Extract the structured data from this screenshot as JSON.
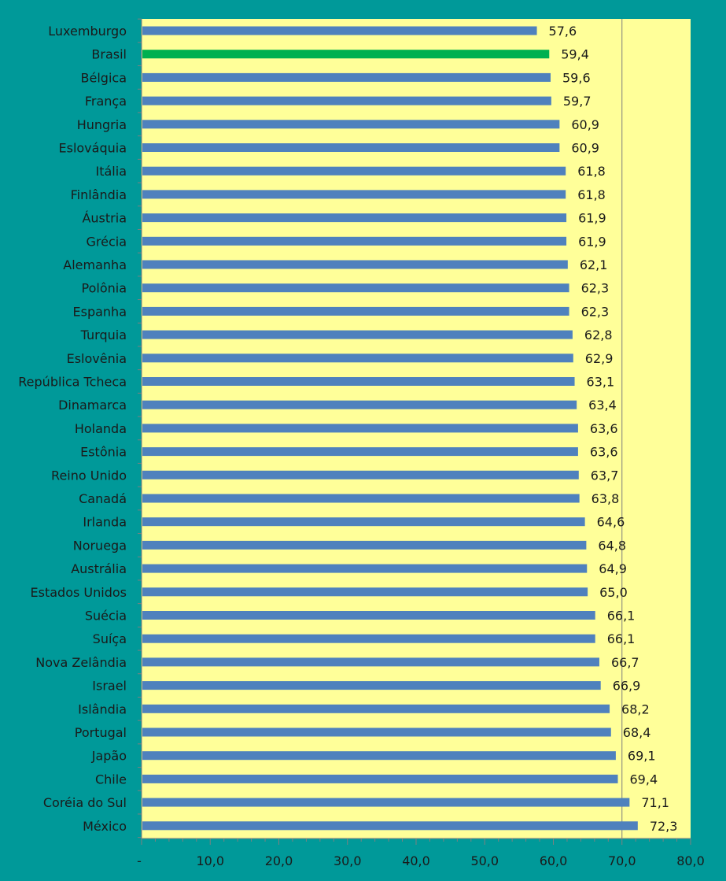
{
  "chart_data": {
    "type": "bar",
    "orientation": "horizontal",
    "categories": [
      "Luxemburgo",
      "Brasil",
      "Bélgica",
      "França",
      "Hungria",
      "Eslováquia",
      "Itália",
      "Finlândia",
      "Áustria",
      "Grécia",
      "Alemanha",
      "Polônia",
      "Espanha",
      "Turquia",
      "Eslovênia",
      "República Tcheca",
      "Dinamarca",
      "Holanda",
      "Estônia",
      "Reino Unido",
      "Canadá",
      "Irlanda",
      "Noruega",
      "Austrália",
      "Estados Unidos",
      "Suécia",
      "Suíça",
      "Nova Zelândia",
      "Israel",
      "Islândia",
      "Portugal",
      "Japão",
      "Chile",
      "Coréia do Sul",
      "México"
    ],
    "values": [
      57.6,
      59.4,
      59.6,
      59.7,
      60.9,
      60.9,
      61.8,
      61.8,
      61.9,
      61.9,
      62.1,
      62.3,
      62.3,
      62.8,
      62.9,
      63.1,
      63.4,
      63.6,
      63.6,
      63.7,
      63.8,
      64.6,
      64.8,
      64.9,
      65.0,
      66.1,
      66.1,
      66.7,
      66.9,
      68.2,
      68.4,
      69.1,
      69.4,
      71.1,
      72.3
    ],
    "value_labels": [
      "57,6",
      "59,4",
      "59,6",
      "59,7",
      "60,9",
      "60,9",
      "61,8",
      "61,8",
      "61,9",
      "61,9",
      "62,1",
      "62,3",
      "62,3",
      "62,8",
      "62,9",
      "63,1",
      "63,4",
      "63,6",
      "63,6",
      "63,7",
      "63,8",
      "64,6",
      "64,8",
      "64,9",
      "65,0",
      "66,1",
      "66,1",
      "66,7",
      "66,9",
      "68,2",
      "68,4",
      "69,1",
      "69,4",
      "71,1",
      "72,3"
    ],
    "highlight_category": "Brasil",
    "xlim": [
      0,
      80
    ],
    "x_ticks": [
      0,
      10,
      20,
      30,
      40,
      50,
      60,
      70,
      80
    ],
    "x_tick_labels": [
      "-",
      "10,0",
      "20,0",
      "30,0",
      "40,0",
      "50,0",
      "60,0",
      "70,0",
      "80,0"
    ],
    "title": "",
    "xlabel": "",
    "ylabel": "",
    "grid": "vertical line at 70 only",
    "legend": "none",
    "colors": {
      "background": "#009999",
      "plot_area": "#FFFF99",
      "bar": "#4F81BD",
      "highlight_bar": "#00B050",
      "axis": "#7f7f7f",
      "text": "#1a1a1a"
    }
  }
}
